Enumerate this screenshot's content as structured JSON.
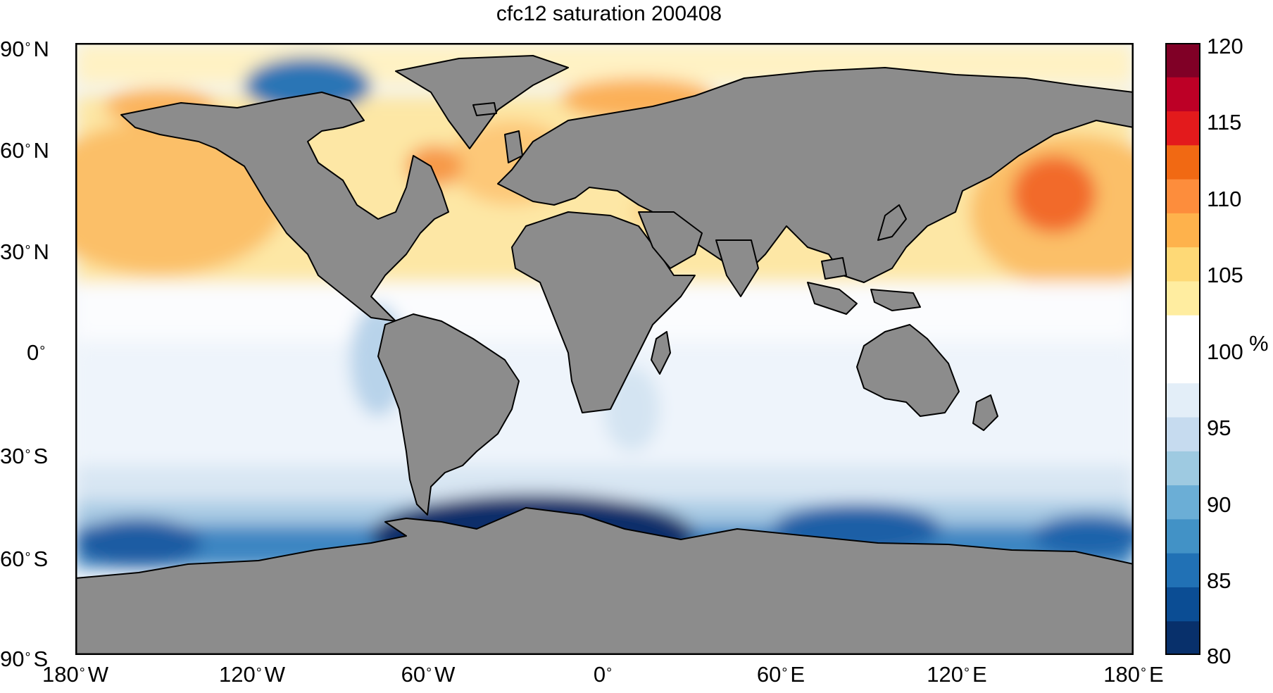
{
  "title": "cfc12 saturation 200408",
  "lat_labels": [
    {
      "num": "90",
      "deg": "°",
      "hem": "N",
      "value": 90
    },
    {
      "num": "60",
      "deg": "°",
      "hem": "N",
      "value": 60
    },
    {
      "num": "30",
      "deg": "°",
      "hem": "N",
      "value": 30
    },
    {
      "num": "0",
      "deg": "°",
      "hem": "",
      "value": 0
    },
    {
      "num": "30",
      "deg": "°",
      "hem": "S",
      "value": -30
    },
    {
      "num": "60",
      "deg": "°",
      "hem": "S",
      "value": -60
    },
    {
      "num": "90",
      "deg": "°",
      "hem": "S",
      "value": -90
    }
  ],
  "lon_labels": [
    {
      "num": "180",
      "deg": "°",
      "hem": "W",
      "value": -180
    },
    {
      "num": "120",
      "deg": "°",
      "hem": "W",
      "value": -120
    },
    {
      "num": "60",
      "deg": "°",
      "hem": "W",
      "value": -60
    },
    {
      "num": "0",
      "deg": "°",
      "hem": "",
      "value": 0
    },
    {
      "num": "60",
      "deg": "°",
      "hem": "E",
      "value": 60
    },
    {
      "num": "120",
      "deg": "°",
      "hem": "E",
      "value": 120
    },
    {
      "num": "180",
      "deg": "°",
      "hem": "E",
      "value": 180
    }
  ],
  "colorbar": {
    "unit": "%",
    "min": 80,
    "max": 120,
    "ticks": [
      "120",
      "115",
      "110",
      "105",
      "100",
      "95",
      "90",
      "85",
      "80"
    ],
    "colors_low_to_high": [
      "#08306b",
      "#0b4d94",
      "#2171b5",
      "#4292c6",
      "#6baed6",
      "#9ecae1",
      "#c6dbef",
      "#e3eef8",
      "#ffffff",
      "#ffffff",
      "#ffeda0",
      "#fed976",
      "#feb24c",
      "#fd8d3c",
      "#f16913",
      "#e31a1c",
      "#bd0026",
      "#800026"
    ]
  },
  "colors": {
    "land": "#8c8c8c",
    "coast": "#000000",
    "ocean_neutral": "#ffffff"
  }
}
